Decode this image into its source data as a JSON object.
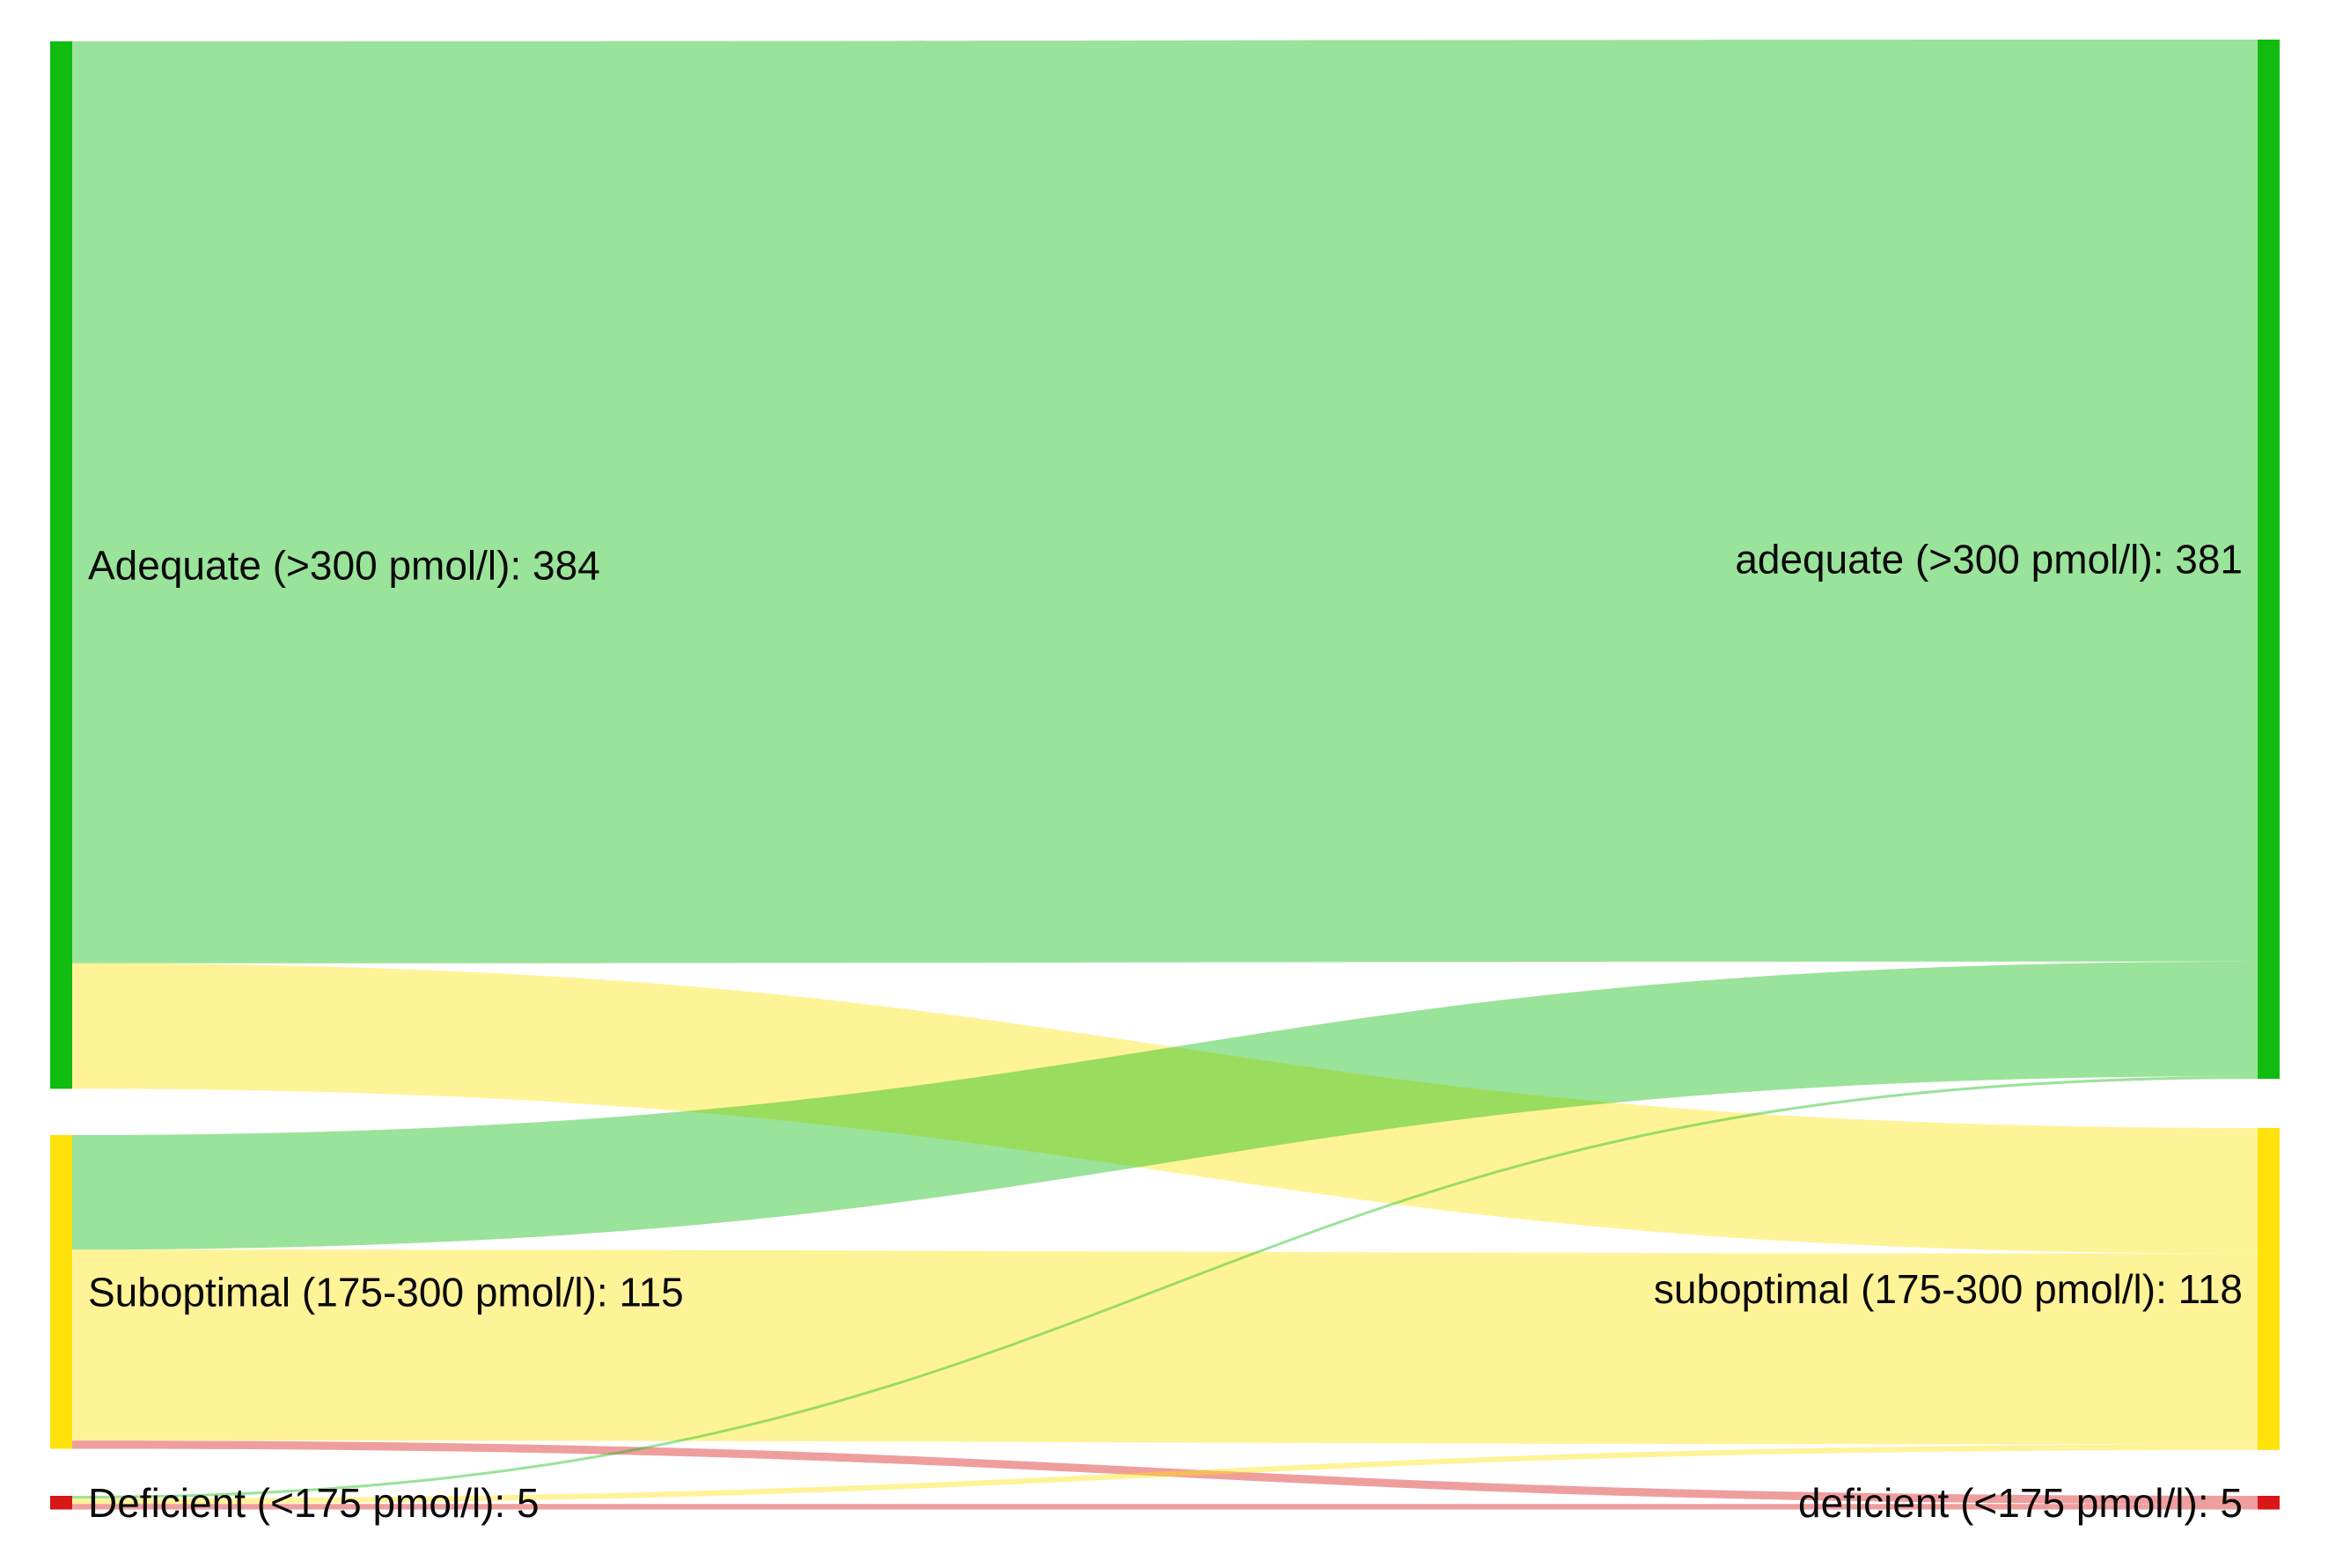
{
  "canvas": {
    "background": "#ffffff"
  },
  "chart_data": {
    "type": "sankey",
    "title": "",
    "orientation": "left-to-right",
    "legend": "none",
    "axes": "none",
    "nodes": {
      "left": [
        {
          "name": "Adequate",
          "label": "Adequate (>300 pmol/l): 384",
          "value": 384,
          "color": "#0fbc0f"
        },
        {
          "name": "Suboptimal",
          "label": "Suboptimal (175-300 pmol/l): 115",
          "value": 115,
          "color": "#ffe20a"
        },
        {
          "name": "Deficient",
          "label": "Deficient (<175 pmol/l): 5",
          "value": 5,
          "color": "#d81717"
        }
      ],
      "right": [
        {
          "name": "adequate",
          "label": "adequate (>300 pmol/l): 381",
          "value": 381,
          "color": "#0fbc0f"
        },
        {
          "name": "suboptimal",
          "label": "suboptimal (175-300 pmol/l): 118",
          "value": 118,
          "color": "#ffe20a"
        },
        {
          "name": "deficient",
          "label": "deficient (<175 pmol/l): 5",
          "value": 5,
          "color": "#d81717"
        }
      ]
    },
    "links": [
      {
        "source": "Adequate",
        "target": "adequate",
        "value": 338
      },
      {
        "source": "Adequate",
        "target": "suboptimal",
        "value": 46
      },
      {
        "source": "Suboptimal",
        "target": "adequate",
        "value": 42
      },
      {
        "source": "Suboptimal",
        "target": "suboptimal",
        "value": 70
      },
      {
        "source": "Suboptimal",
        "target": "deficient",
        "value": 3
      },
      {
        "source": "Deficient",
        "target": "adequate",
        "value": 1
      },
      {
        "source": "Deficient",
        "target": "suboptimal",
        "value": 2
      },
      {
        "source": "Deficient",
        "target": "deficient",
        "value": 2
      }
    ],
    "link_style": {
      "opacity": 0.42,
      "color_by": "target"
    },
    "label_color": "#0a0a0a"
  }
}
